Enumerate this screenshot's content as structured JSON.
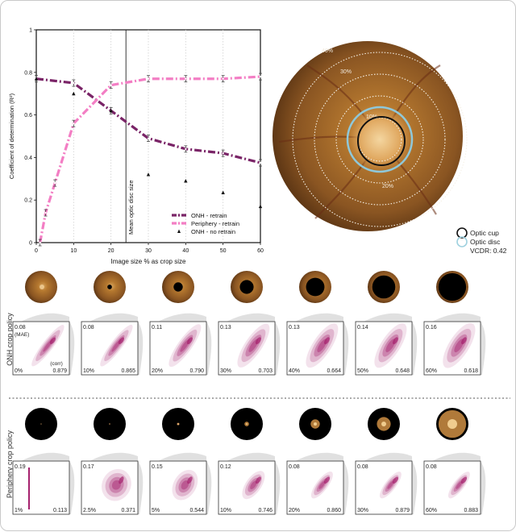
{
  "colors": {
    "onh": "#7a2467",
    "periphery": "#f37ec4",
    "noretrain": "#111111",
    "cup": "#111111",
    "disc": "#9fd1df",
    "density": "#a5216e",
    "marginal": "#d6d6d6"
  },
  "chart_data": [
    {
      "type": "line",
      "xlabel": "Image size % as crop size",
      "ylabel": "Coefficient of determination (R²)",
      "xlim": [
        0,
        60
      ],
      "ylim": [
        0,
        1
      ],
      "x_ticks": [
        0,
        10,
        20,
        30,
        40,
        50,
        60
      ],
      "y_ticks": [
        0,
        0.2,
        0.4,
        0.6,
        0.8,
        1
      ],
      "y_tick_labels": [
        "0",
        "0.2",
        "0.4",
        "0.6",
        "0.8",
        "1"
      ],
      "vline": {
        "x": 24,
        "label": "Mean optic disc size"
      },
      "legend_position": "bottom-right",
      "series": [
        {
          "name": "ONH - retrain",
          "style": "dashdot",
          "x": [
            0,
            10,
            20,
            30,
            40,
            50,
            60
          ],
          "y": [
            0.77,
            0.75,
            0.62,
            0.49,
            0.44,
            0.42,
            0.375
          ]
        },
        {
          "name": "Periphery - retrain",
          "style": "dashdot",
          "x": [
            1,
            2.5,
            5,
            10,
            20,
            30,
            40,
            50,
            60
          ],
          "y": [
            0.0,
            0.14,
            0.28,
            0.56,
            0.74,
            0.77,
            0.77,
            0.77,
            0.78
          ]
        },
        {
          "name": "ONH - no retrain",
          "style": "markers",
          "x": [
            0,
            10,
            20,
            30,
            40,
            50,
            60
          ],
          "y": [
            0.77,
            0.7,
            0.62,
            0.32,
            0.29,
            0.235,
            0.17
          ]
        }
      ]
    },
    {
      "type": "other",
      "fundus": {
        "rings": [
          {
            "pct": 10,
            "label": "10%"
          },
          {
            "pct": 20,
            "label": "20%"
          },
          {
            "pct": 30,
            "label": "30%"
          },
          {
            "pct": 40,
            "label": "40%"
          }
        ],
        "legend": [
          "Optic cup",
          "Optic disc"
        ],
        "vcdr_text": "VCDR: 0.42"
      }
    },
    {
      "type": "heatmap",
      "row_label": "ONH crop policy",
      "crop_mode": "onh",
      "crops": [
        0,
        10,
        20,
        30,
        40,
        50,
        60
      ],
      "panels": [
        {
          "mae": "0.08",
          "mae_label": "(MAE)",
          "corr_label": "(corr)",
          "pct": "0%",
          "corr": "0.879"
        },
        {
          "mae": "0.08",
          "pct": "10%",
          "corr": "0.865"
        },
        {
          "mae": "0.11",
          "pct": "20%",
          "corr": "0.790"
        },
        {
          "mae": "0.13",
          "pct": "30%",
          "corr": "0.703"
        },
        {
          "mae": "0.13",
          "pct": "40%",
          "corr": "0.664"
        },
        {
          "mae": "0.14",
          "pct": "50%",
          "corr": "0.648"
        },
        {
          "mae": "0.16",
          "pct": "60%",
          "corr": "0.618"
        }
      ]
    },
    {
      "type": "heatmap",
      "row_label": "Periphery crop policy",
      "crop_mode": "periphery",
      "crops": [
        1,
        2.5,
        5,
        10,
        20,
        30,
        60
      ],
      "panels": [
        {
          "mae": "0.19",
          "pct": "1%",
          "corr": "0.113"
        },
        {
          "mae": "0.17",
          "pct": "2.5%",
          "corr": "0.371"
        },
        {
          "mae": "0.15",
          "pct": "5%",
          "corr": "0.544"
        },
        {
          "mae": "0.12",
          "pct": "10%",
          "corr": "0.746"
        },
        {
          "mae": "0.08",
          "pct": "20%",
          "corr": "0.860"
        },
        {
          "mae": "0.08",
          "pct": "30%",
          "corr": "0.879"
        },
        {
          "mae": "0.08",
          "pct": "60%",
          "corr": "0.883"
        }
      ]
    }
  ]
}
